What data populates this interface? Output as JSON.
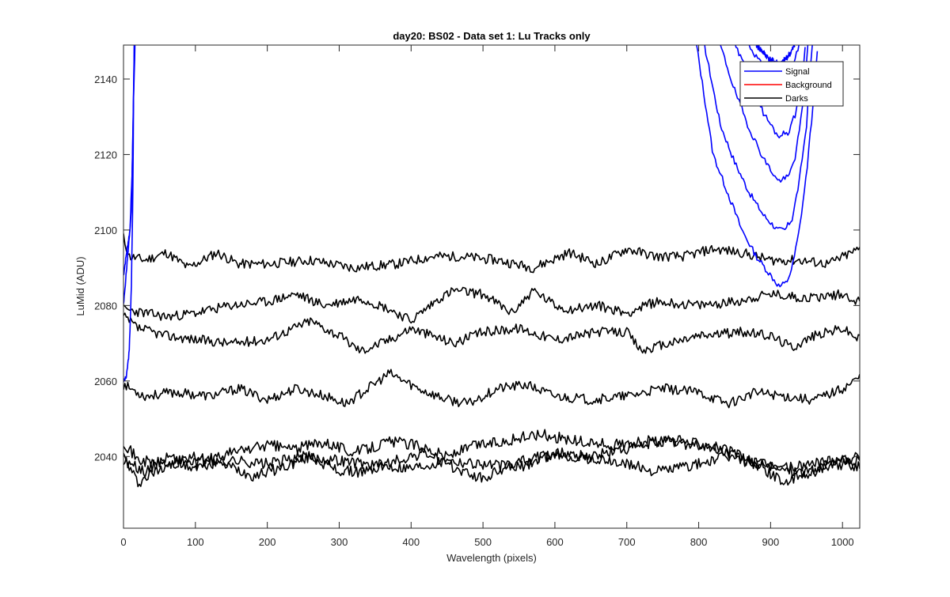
{
  "chart_data": {
    "type": "line",
    "title": "day20: BS02 - Data set 1: Lu Tracks only",
    "xlabel": "Wavelength (pixels)",
    "ylabel": "LuMid (ADU)",
    "xlim": [
      0,
      1024
    ],
    "ylim": [
      2021,
      2149
    ],
    "xticks": [
      0,
      100,
      200,
      300,
      400,
      500,
      600,
      700,
      800,
      900,
      1000
    ],
    "yticks": [
      2040,
      2060,
      2080,
      2100,
      2120,
      2140
    ],
    "grid": false,
    "legend_position": "top-right",
    "colors": {
      "signal": "#0000ff",
      "background": "#ff0000",
      "darks": "#000000"
    },
    "legend": [
      {
        "label": "Signal",
        "color": "#0000ff"
      },
      {
        "label": "Background",
        "color": "#ff0000"
      },
      {
        "label": "Darks",
        "color": "#000000"
      }
    ],
    "series": [
      {
        "name": "Darks",
        "color": "#000000",
        "noise": 1.3,
        "seed": 11,
        "points": [
          [
            0,
            2098
          ],
          [
            8,
            2093
          ],
          [
            30,
            2092
          ],
          [
            60,
            2094
          ],
          [
            90,
            2090
          ],
          [
            130,
            2094
          ],
          [
            160,
            2091
          ],
          [
            200,
            2091
          ],
          [
            260,
            2092
          ],
          [
            320,
            2090
          ],
          [
            380,
            2091
          ],
          [
            430,
            2093
          ],
          [
            470,
            2093
          ],
          [
            520,
            2092
          ],
          [
            570,
            2090
          ],
          [
            620,
            2094
          ],
          [
            660,
            2091
          ],
          [
            700,
            2095
          ],
          [
            740,
            2093
          ],
          [
            780,
            2093
          ],
          [
            820,
            2095
          ],
          [
            860,
            2094
          ],
          [
            900,
            2092
          ],
          [
            940,
            2092
          ],
          [
            980,
            2091
          ],
          [
            1024,
            2095
          ]
        ]
      },
      {
        "name": "Darks",
        "color": "#000000",
        "noise": 1.3,
        "seed": 23,
        "points": [
          [
            0,
            2079
          ],
          [
            30,
            2078
          ],
          [
            60,
            2077
          ],
          [
            100,
            2078
          ],
          [
            150,
            2080
          ],
          [
            200,
            2081
          ],
          [
            240,
            2083
          ],
          [
            280,
            2080
          ],
          [
            330,
            2082
          ],
          [
            370,
            2079
          ],
          [
            400,
            2076
          ],
          [
            440,
            2082
          ],
          [
            460,
            2084
          ],
          [
            500,
            2083
          ],
          [
            540,
            2078
          ],
          [
            570,
            2084
          ],
          [
            600,
            2080
          ],
          [
            620,
            2079
          ],
          [
            660,
            2080
          ],
          [
            700,
            2078
          ],
          [
            740,
            2081
          ],
          [
            800,
            2080
          ],
          [
            850,
            2081
          ],
          [
            900,
            2083
          ],
          [
            950,
            2082
          ],
          [
            1000,
            2083
          ],
          [
            1024,
            2081
          ]
        ]
      },
      {
        "name": "Darks",
        "color": "#000000",
        "noise": 1.3,
        "seed": 37,
        "points": [
          [
            0,
            2077
          ],
          [
            20,
            2074
          ],
          [
            60,
            2072
          ],
          [
            100,
            2071
          ],
          [
            150,
            2070
          ],
          [
            200,
            2071
          ],
          [
            260,
            2076
          ],
          [
            300,
            2072
          ],
          [
            330,
            2068
          ],
          [
            370,
            2071
          ],
          [
            400,
            2074
          ],
          [
            430,
            2072
          ],
          [
            460,
            2070
          ],
          [
            500,
            2073
          ],
          [
            550,
            2074
          ],
          [
            600,
            2071
          ],
          [
            660,
            2073
          ],
          [
            700,
            2073
          ],
          [
            720,
            2068
          ],
          [
            760,
            2070
          ],
          [
            800,
            2072
          ],
          [
            860,
            2073
          ],
          [
            900,
            2072
          ],
          [
            930,
            2069
          ],
          [
            960,
            2072
          ],
          [
            1000,
            2074
          ],
          [
            1024,
            2071
          ]
        ]
      },
      {
        "name": "Darks",
        "color": "#000000",
        "noise": 1.3,
        "seed": 53,
        "points": [
          [
            0,
            2059
          ],
          [
            30,
            2056
          ],
          [
            70,
            2057
          ],
          [
            120,
            2056
          ],
          [
            160,
            2058
          ],
          [
            200,
            2055
          ],
          [
            240,
            2058
          ],
          [
            280,
            2056
          ],
          [
            310,
            2054
          ],
          [
            340,
            2058
          ],
          [
            370,
            2062
          ],
          [
            410,
            2058
          ],
          [
            450,
            2055
          ],
          [
            480,
            2054
          ],
          [
            520,
            2058
          ],
          [
            560,
            2059
          ],
          [
            600,
            2056
          ],
          [
            650,
            2055
          ],
          [
            700,
            2056
          ],
          [
            750,
            2058
          ],
          [
            800,
            2057
          ],
          [
            840,
            2054
          ],
          [
            880,
            2057
          ],
          [
            920,
            2056
          ],
          [
            960,
            2055
          ],
          [
            1000,
            2058
          ],
          [
            1024,
            2061
          ]
        ]
      },
      {
        "name": "Darks",
        "color": "#000000",
        "noise": 1.5,
        "seed": 71,
        "points": [
          [
            0,
            2044
          ],
          [
            20,
            2039
          ],
          [
            60,
            2038
          ],
          [
            100,
            2037
          ],
          [
            150,
            2039
          ],
          [
            200,
            2038
          ],
          [
            250,
            2040
          ],
          [
            300,
            2039
          ],
          [
            340,
            2038
          ],
          [
            400,
            2037
          ],
          [
            450,
            2039
          ],
          [
            500,
            2038
          ],
          [
            550,
            2037
          ],
          [
            600,
            2041
          ],
          [
            650,
            2040
          ],
          [
            700,
            2042
          ],
          [
            750,
            2044
          ],
          [
            800,
            2043
          ],
          [
            840,
            2041
          ],
          [
            880,
            2038
          ],
          [
            930,
            2037
          ],
          [
            980,
            2039
          ],
          [
            1024,
            2040
          ]
        ]
      },
      {
        "name": "Darks",
        "color": "#000000",
        "noise": 1.5,
        "seed": 89,
        "points": [
          [
            0,
            2039
          ],
          [
            30,
            2036
          ],
          [
            60,
            2040
          ],
          [
            100,
            2038
          ],
          [
            150,
            2041
          ],
          [
            200,
            2043
          ],
          [
            240,
            2042
          ],
          [
            280,
            2044
          ],
          [
            320,
            2041
          ],
          [
            370,
            2044
          ],
          [
            410,
            2043
          ],
          [
            450,
            2040
          ],
          [
            490,
            2043
          ],
          [
            530,
            2044
          ],
          [
            580,
            2046
          ],
          [
            630,
            2044
          ],
          [
            680,
            2043
          ],
          [
            730,
            2044
          ],
          [
            780,
            2044
          ],
          [
            820,
            2043
          ],
          [
            860,
            2040
          ],
          [
            900,
            2037
          ],
          [
            950,
            2036
          ],
          [
            1000,
            2038
          ],
          [
            1024,
            2039
          ]
        ]
      },
      {
        "name": "Darks",
        "color": "#000000",
        "noise": 1.5,
        "seed": 97,
        "points": [
          [
            0,
            2040
          ],
          [
            20,
            2033
          ],
          [
            60,
            2038
          ],
          [
            100,
            2040
          ],
          [
            140,
            2038
          ],
          [
            180,
            2035
          ],
          [
            220,
            2037
          ],
          [
            260,
            2040
          ],
          [
            300,
            2036
          ],
          [
            340,
            2036
          ],
          [
            380,
            2039
          ],
          [
            420,
            2041
          ],
          [
            460,
            2037
          ],
          [
            500,
            2034
          ],
          [
            540,
            2038
          ],
          [
            580,
            2040
          ],
          [
            620,
            2040
          ],
          [
            660,
            2039
          ],
          [
            700,
            2038
          ],
          [
            740,
            2036
          ],
          [
            800,
            2038
          ],
          [
            840,
            2040
          ],
          [
            880,
            2038
          ],
          [
            920,
            2033
          ],
          [
            960,
            2036
          ],
          [
            1000,
            2039
          ],
          [
            1024,
            2037
          ]
        ]
      },
      {
        "name": "Signal",
        "color": "#0000ff",
        "noise": 0.5,
        "seed": 3,
        "points": [
          [
            0,
            2060
          ],
          [
            4,
            2061
          ],
          [
            8,
            2068
          ],
          [
            11,
            2085
          ],
          [
            13,
            2110
          ],
          [
            14,
            2135
          ],
          [
            15,
            2149
          ]
        ]
      },
      {
        "name": "Signal",
        "color": "#0000ff",
        "noise": 0.5,
        "seed": 5,
        "points": [
          [
            0,
            2080
          ],
          [
            4,
            2089
          ],
          [
            8,
            2098
          ],
          [
            11,
            2105
          ],
          [
            13,
            2125
          ],
          [
            15,
            2149
          ]
        ]
      },
      {
        "name": "Signal",
        "color": "#0000ff",
        "noise": 0.5,
        "seed": 7,
        "points": [
          [
            0,
            2088
          ],
          [
            5,
            2095
          ],
          [
            9,
            2100
          ],
          [
            12,
            2115
          ],
          [
            14,
            2135
          ],
          [
            16,
            2149
          ]
        ]
      },
      {
        "name": "Signal",
        "color": "#0000ff",
        "noise": 0.8,
        "seed": 13,
        "points": [
          [
            797,
            2149
          ],
          [
            820,
            2120
          ],
          [
            840,
            2110
          ],
          [
            860,
            2100
          ],
          [
            880,
            2093
          ],
          [
            900,
            2088
          ],
          [
            912,
            2085
          ],
          [
            922,
            2086
          ],
          [
            930,
            2090
          ],
          [
            940,
            2100
          ],
          [
            950,
            2115
          ],
          [
            960,
            2135
          ],
          [
            966,
            2149
          ]
        ]
      },
      {
        "name": "Signal",
        "color": "#0000ff",
        "noise": 0.8,
        "seed": 17,
        "points": [
          [
            808,
            2149
          ],
          [
            830,
            2128
          ],
          [
            850,
            2118
          ],
          [
            870,
            2110
          ],
          [
            890,
            2104
          ],
          [
            910,
            2100
          ],
          [
            920,
            2100
          ],
          [
            930,
            2103
          ],
          [
            940,
            2113
          ],
          [
            950,
            2128
          ],
          [
            958,
            2149
          ]
        ]
      },
      {
        "name": "Signal",
        "color": "#0000ff",
        "noise": 0.8,
        "seed": 19,
        "points": [
          [
            830,
            2149
          ],
          [
            850,
            2137
          ],
          [
            870,
            2127
          ],
          [
            890,
            2119
          ],
          [
            910,
            2113
          ],
          [
            925,
            2114
          ],
          [
            935,
            2120
          ],
          [
            945,
            2133
          ],
          [
            952,
            2149
          ]
        ]
      },
      {
        "name": "Signal",
        "color": "#0000ff",
        "noise": 0.8,
        "seed": 29,
        "points": [
          [
            850,
            2149
          ],
          [
            870,
            2141
          ],
          [
            890,
            2131
          ],
          [
            910,
            2125
          ],
          [
            925,
            2126
          ],
          [
            935,
            2131
          ],
          [
            945,
            2142
          ],
          [
            948,
            2149
          ]
        ]
      },
      {
        "name": "Signal",
        "color": "#0000ff",
        "noise": 0.8,
        "seed": 31,
        "points": [
          [
            870,
            2149
          ],
          [
            890,
            2143
          ],
          [
            910,
            2139
          ],
          [
            922,
            2140
          ],
          [
            932,
            2144
          ],
          [
            940,
            2149
          ]
        ]
      },
      {
        "name": "Signal",
        "color": "#0000ff",
        "noise": 0.8,
        "seed": 41,
        "points": [
          [
            880,
            2149
          ],
          [
            900,
            2145
          ],
          [
            915,
            2144
          ],
          [
            928,
            2147
          ],
          [
            934,
            2149
          ]
        ]
      }
    ]
  }
}
